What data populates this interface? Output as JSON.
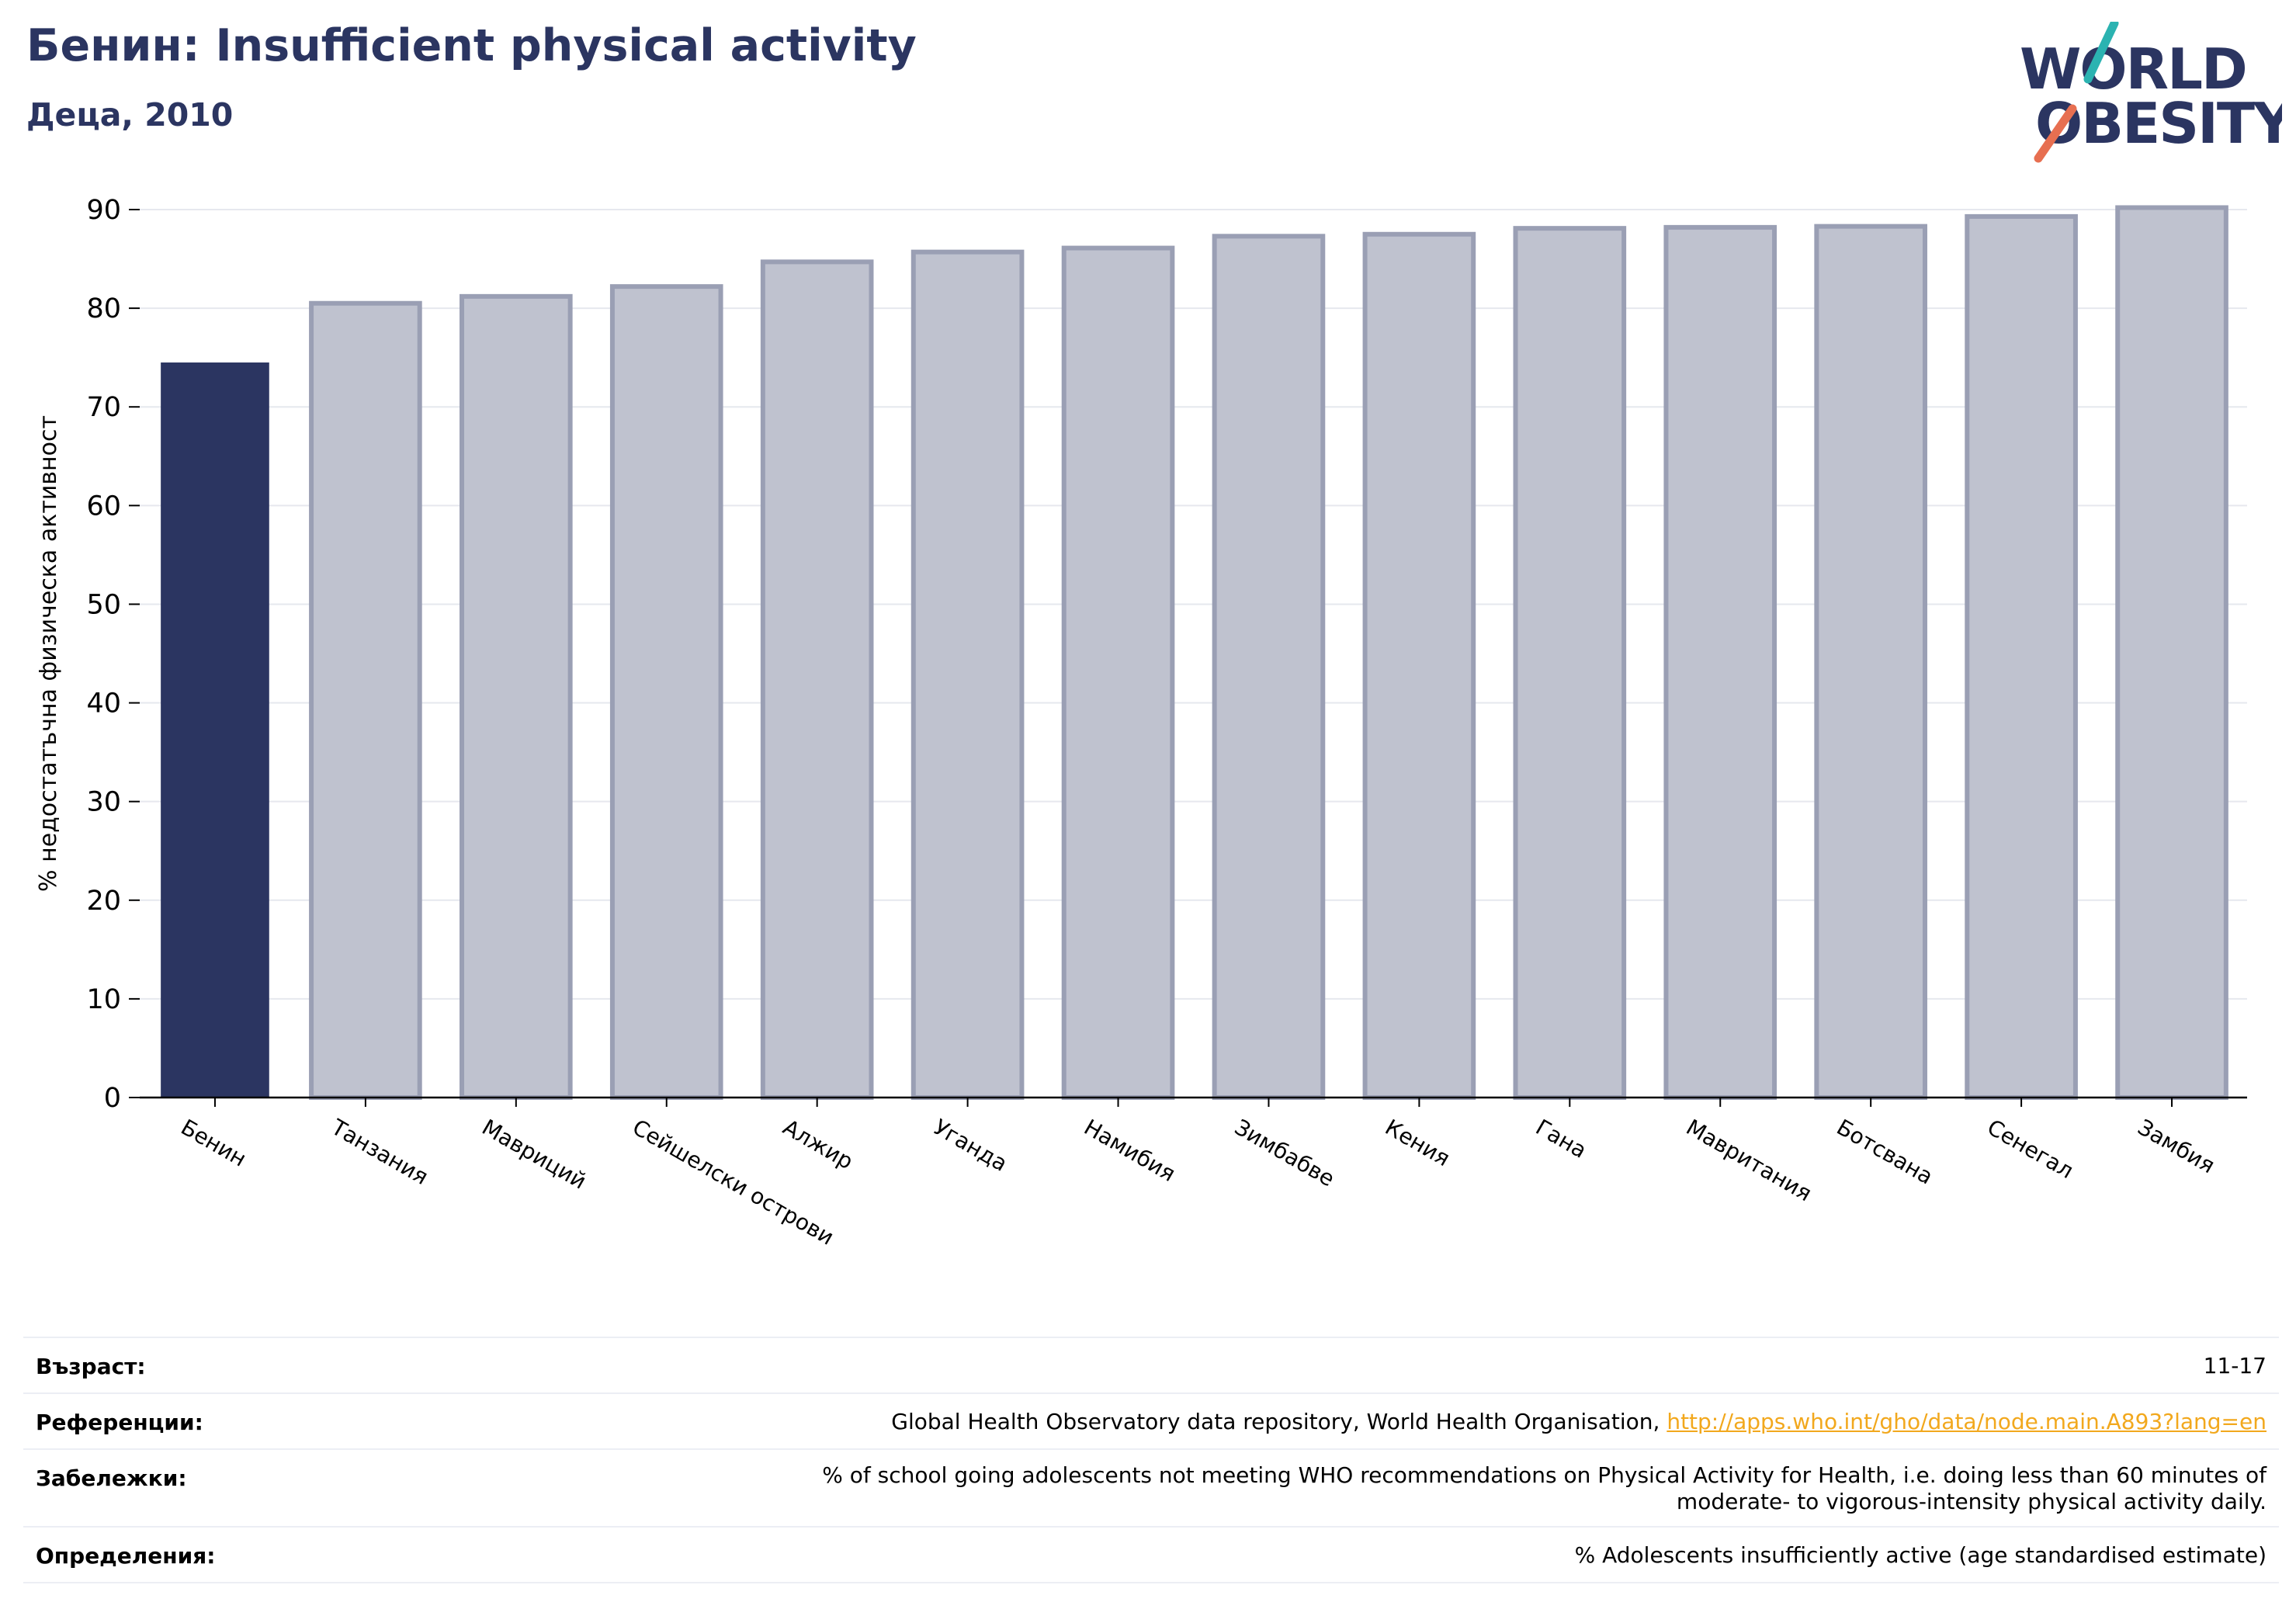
{
  "header": {
    "title": "Бенин: Insufficient physical activity",
    "subtitle": "Деца, 2010"
  },
  "logo": {
    "line1": "WORLD",
    "line2": "OBESITY",
    "accent_teal": "#2bb3b1",
    "accent_coral": "#e76f51",
    "text_color": "#2b3561"
  },
  "colors": {
    "highlight_bar": "#2b3561",
    "other_bar_fill": "#bfc2cf",
    "other_bar_stroke": "#9a9fb4"
  },
  "chart_data": {
    "type": "bar",
    "categories": [
      "Бенин",
      "Танзания",
      "Мавриций",
      "Сейшелски острови",
      "Алжир",
      "Уганда",
      "Намибия",
      "Зимбабве",
      "Кения",
      "Гана",
      "Мавритания",
      "Ботсвана",
      "Сенегал",
      "Замбия"
    ],
    "values": [
      74.5,
      80.5,
      81.2,
      82.2,
      84.7,
      85.7,
      86.1,
      87.3,
      87.5,
      88.1,
      88.2,
      88.3,
      89.3,
      90.2
    ],
    "highlight": "Бенин",
    "ylabel": "% недостатъчна физическа активност",
    "xlabel": "",
    "ylim": [
      0,
      90
    ],
    "yticks": [
      0,
      10,
      20,
      30,
      40,
      50,
      60,
      70,
      80,
      90
    ],
    "grid": true
  },
  "meta": {
    "age": {
      "label": "Възраст:",
      "value": "11-17"
    },
    "references": {
      "label": "Референции:",
      "text": "Global Health Observatory data repository, World Health Organisation, ",
      "link": "http://apps.who.int/gho/data/node.main.A893?lang=en"
    },
    "notes": {
      "label": "Забележки:",
      "line1": "% of school going adolescents not meeting WHO recommendations on Physical Activity for Health, i.e. doing less than 60 minutes of",
      "line2": "moderate- to vigorous-intensity physical activity daily."
    },
    "definitions": {
      "label": "Определения:",
      "value": "% Adolescents insufficiently active (age standardised estimate)"
    }
  }
}
